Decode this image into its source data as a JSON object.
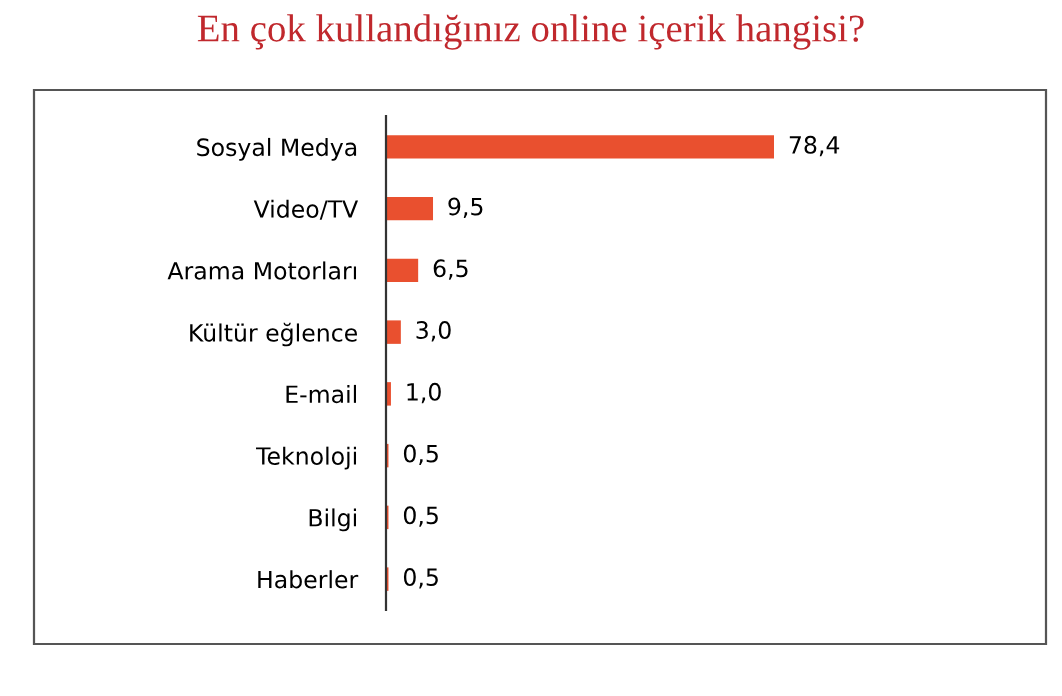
{
  "chart_data": {
    "type": "bar",
    "orientation": "horizontal",
    "title": "En çok kullandığınız online içerik hangisi?",
    "categories": [
      "Sosyal Medya",
      "Video/TV",
      "Arama Motorları",
      "Kültür eğlence",
      "E-mail",
      "Teknoloji",
      "Bilgi",
      "Haberler"
    ],
    "values": [
      78.4,
      9.5,
      6.5,
      3.0,
      1.0,
      0.5,
      0.5,
      0.5
    ],
    "value_labels": [
      "78,4",
      "9,5",
      "6,5",
      "3,0",
      "1,0",
      "0,5",
      "0,5",
      "0,5"
    ],
    "color": "#e9502f",
    "grid": false,
    "legend": false
  }
}
